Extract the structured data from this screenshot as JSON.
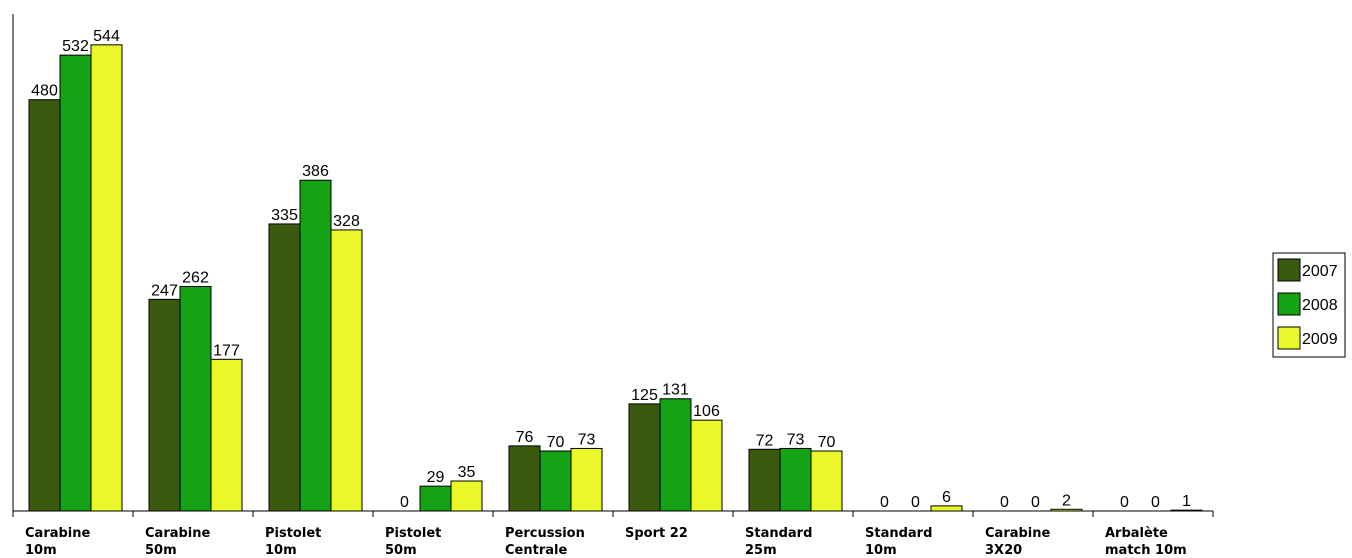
{
  "chart_data": {
    "type": "bar",
    "title": "",
    "xlabel": "",
    "ylabel": "",
    "ylim": [
      0,
      580
    ],
    "grid": false,
    "legend_position": "right",
    "categories": [
      [
        "Carabine",
        "10m"
      ],
      [
        "Carabine",
        "50m"
      ],
      [
        "Pistolet",
        "10m"
      ],
      [
        "Pistolet",
        "50m"
      ],
      [
        "Percussion",
        "Centrale"
      ],
      [
        "Sport 22"
      ],
      [
        "Standard",
        "25m"
      ],
      [
        "Standard",
        "10m"
      ],
      [
        "Carabine",
        "3X20"
      ],
      [
        "Arbalète",
        "match 10m"
      ]
    ],
    "series": [
      {
        "name": "2007",
        "color": "#3b5a0e",
        "values": [
          480,
          247,
          335,
          0,
          76,
          125,
          72,
          0,
          0,
          0
        ]
      },
      {
        "name": "2008",
        "color": "#15a315",
        "values": [
          532,
          262,
          386,
          29,
          70,
          131,
          73,
          0,
          0,
          0
        ]
      },
      {
        "name": "2009",
        "color": "#eaf82a",
        "values": [
          544,
          177,
          328,
          35,
          73,
          106,
          70,
          6,
          2,
          1
        ]
      }
    ]
  }
}
